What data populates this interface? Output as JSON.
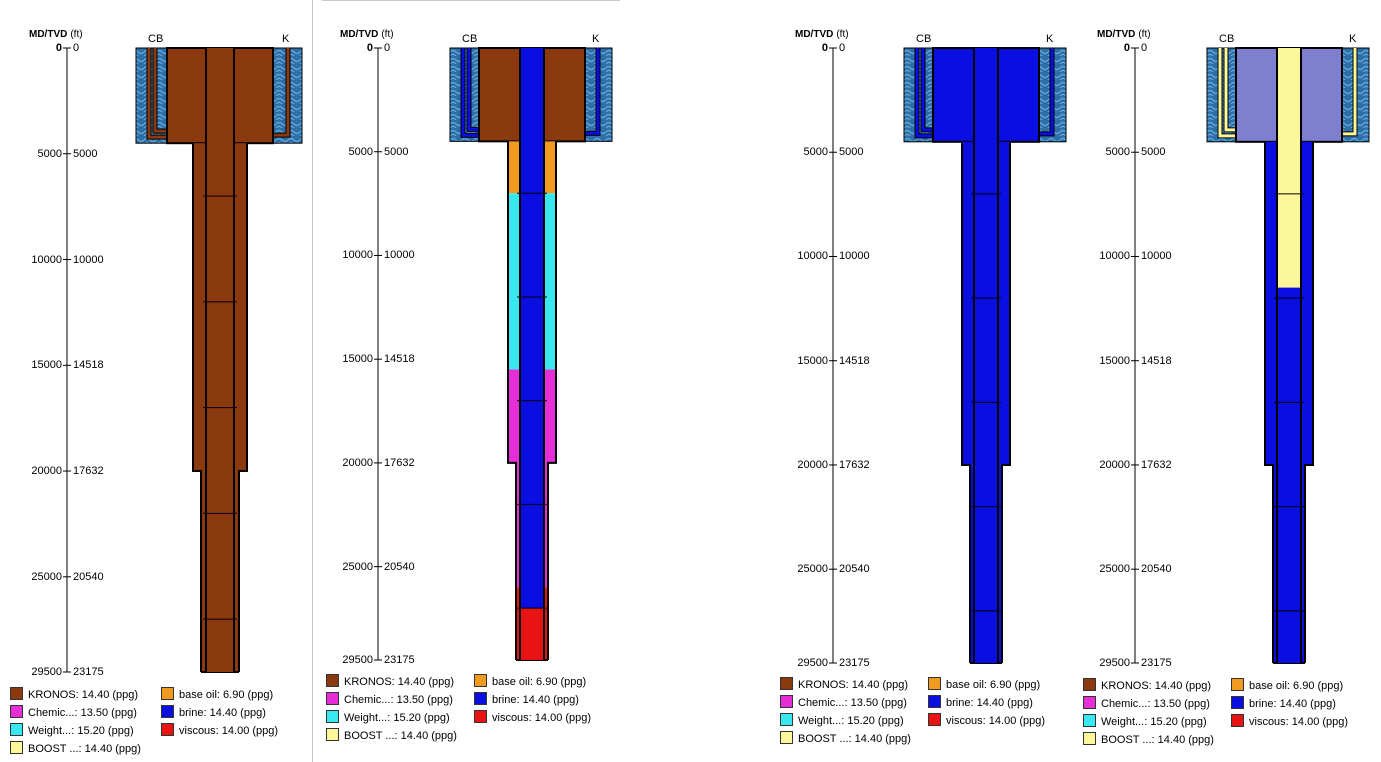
{
  "header": {
    "md_tvd": "MD/TVD",
    "unit": "(ft)"
  },
  "labels": {
    "cb": "CB",
    "k": "K"
  },
  "depth_ticks": [
    {
      "md": "0",
      "tvd": "0"
    },
    {
      "md": "5000",
      "tvd": "5000"
    },
    {
      "md": "10000",
      "tvd": "10000"
    },
    {
      "md": "15000",
      "tvd": "14518"
    },
    {
      "md": "20000",
      "tvd": "17632"
    },
    {
      "md": "25000",
      "tvd": "20540"
    },
    {
      "md": "29500",
      "tvd": "23175"
    }
  ],
  "depth_md_values": [
    0,
    5000,
    10000,
    15000,
    20000,
    25000,
    29500
  ],
  "max_md": 29500,
  "fluids": {
    "kronos": {
      "name": "KRONOS",
      "color": "#8b3a0f"
    },
    "chemic": {
      "name": "Chemic...",
      "color": "#e62ed6"
    },
    "weight": {
      "name": "Weight...",
      "color": "#38e8ee"
    },
    "boost": {
      "name": "BOOST ...",
      "color": "#fdf79c"
    },
    "baseoil": {
      "name": "base oil",
      "color": "#f19a22"
    },
    "brine": {
      "name": "brine",
      "color": "#0b0ee0"
    },
    "viscous": {
      "name": "viscous",
      "color": "#e81313"
    }
  },
  "panels": [
    {
      "legend": [
        {
          "name": "KRONOS",
          "value": "14.40",
          "unit": "(ppg)",
          "fluid": "kronos"
        },
        {
          "name": "Chemic...",
          "value": "13.50",
          "unit": "(ppg)",
          "fluid": "chemic"
        },
        {
          "name": "Weight...",
          "value": "15.20",
          "unit": "(ppg)",
          "fluid": "weight"
        },
        {
          "name": "BOOST ...",
          "value": "14.40",
          "unit": "(ppg)",
          "fluid": "boost"
        },
        {
          "name": "base oil",
          "value": "6.90",
          "unit": "(ppg)",
          "fluid": "baseoil"
        },
        {
          "name": "brine",
          "value": "14.40",
          "unit": "(ppg)",
          "fluid": "brine"
        },
        {
          "name": "viscous",
          "value": "14.00",
          "unit": "(ppg)",
          "fluid": "viscous"
        }
      ],
      "fill": {
        "riser_annulus": "kronos",
        "riser_pipe": "kronos",
        "lines": "kronos",
        "annulus": [
          {
            "from": 4500,
            "to": 29500,
            "fluid": "kronos"
          }
        ],
        "pipe": [
          {
            "from": 0,
            "to": 29500,
            "fluid": "kronos"
          }
        ]
      }
    },
    {
      "legend": [
        {
          "name": "KRONOS",
          "value": "14.40",
          "unit": "(ppg)",
          "fluid": "kronos"
        },
        {
          "name": "Chemic...",
          "value": "13.50",
          "unit": "(ppg)",
          "fluid": "chemic"
        },
        {
          "name": "Weight...",
          "value": "15.20",
          "unit": "(ppg)",
          "fluid": "weight"
        },
        {
          "name": "BOOST ...",
          "value": "14.40",
          "unit": "(ppg)",
          "fluid": "boost"
        },
        {
          "name": "base oil",
          "value": "6.90",
          "unit": "(ppg)",
          "fluid": "baseoil"
        },
        {
          "name": "brine",
          "value": "14.40",
          "unit": "(ppg)",
          "fluid": "brine"
        },
        {
          "name": "viscous",
          "value": "14.00",
          "unit": "(ppg)",
          "fluid": "viscous"
        }
      ],
      "fill": {
        "riser_annulus": "kronos",
        "riser_pipe": "brine",
        "lines": "brine",
        "annulus": [
          {
            "from": 4500,
            "to": 7000,
            "fluid": "baseoil"
          },
          {
            "from": 7000,
            "to": 15500,
            "fluid": "weight"
          },
          {
            "from": 15500,
            "to": 26000,
            "fluid": "chemic"
          },
          {
            "from": 26000,
            "to": 29500,
            "fluid": "viscous"
          }
        ],
        "pipe": [
          {
            "from": 0,
            "to": 27000,
            "fluid": "brine"
          },
          {
            "from": 27000,
            "to": 29500,
            "fluid": "viscous"
          }
        ]
      }
    },
    {
      "legend": [
        {
          "name": "KRONOS",
          "value": "14.40",
          "unit": "(ppg)",
          "fluid": "kronos"
        },
        {
          "name": "Chemic...",
          "value": "13.50",
          "unit": "(ppg)",
          "fluid": "chemic"
        },
        {
          "name": "Weight...",
          "value": "15.20",
          "unit": "(ppg)",
          "fluid": "weight"
        },
        {
          "name": "BOOST ...",
          "value": "14.40",
          "unit": "(ppg)",
          "fluid": "boost"
        },
        {
          "name": "base oil",
          "value": "6.90",
          "unit": "(ppg)",
          "fluid": "baseoil"
        },
        {
          "name": "brine",
          "value": "14.40",
          "unit": "(ppg)",
          "fluid": "brine"
        },
        {
          "name": "viscous",
          "value": "14.00",
          "unit": "(ppg)",
          "fluid": "viscous"
        }
      ],
      "fill": {
        "riser_annulus": "brine",
        "riser_pipe": "brine",
        "lines": "brine",
        "annulus": [
          {
            "from": 4500,
            "to": 29500,
            "fluid": "brine"
          }
        ],
        "pipe": [
          {
            "from": 0,
            "to": 29500,
            "fluid": "brine"
          }
        ]
      }
    },
    {
      "legend": [
        {
          "name": "KRONOS",
          "value": "14.40",
          "unit": "(ppg)",
          "fluid": "kronos"
        },
        {
          "name": "Chemic...",
          "value": "13.50",
          "unit": "(ppg)",
          "fluid": "chemic"
        },
        {
          "name": "Weight...",
          "value": "15.20",
          "unit": "(ppg)",
          "fluid": "weight"
        },
        {
          "name": "BOOST ...",
          "value": "14.40",
          "unit": "(ppg)",
          "fluid": "boost"
        },
        {
          "name": "base oil",
          "value": "6.90",
          "unit": "(ppg)",
          "fluid": "baseoil"
        },
        {
          "name": "brine",
          "value": "14.40",
          "unit": "(ppg)",
          "fluid": "brine"
        },
        {
          "name": "viscous",
          "value": "14.00",
          "unit": "(ppg)",
          "fluid": "viscous"
        }
      ],
      "fill": {
        "riser_annulus": "lavender",
        "riser_pipe": "boost",
        "lines": "boost",
        "annulus": [
          {
            "from": 4500,
            "to": 29500,
            "fluid": "brine"
          }
        ],
        "pipe": [
          {
            "from": 0,
            "to": 11500,
            "fluid": "boost"
          },
          {
            "from": 11500,
            "to": 29500,
            "fluid": "brine"
          }
        ]
      }
    }
  ],
  "colors": {
    "sea_dark": "#2f6fa8",
    "sea_light": "#5aa6dc",
    "lavender": "#7f7fcf",
    "white": "#ffffff",
    "outline": "#000000"
  }
}
